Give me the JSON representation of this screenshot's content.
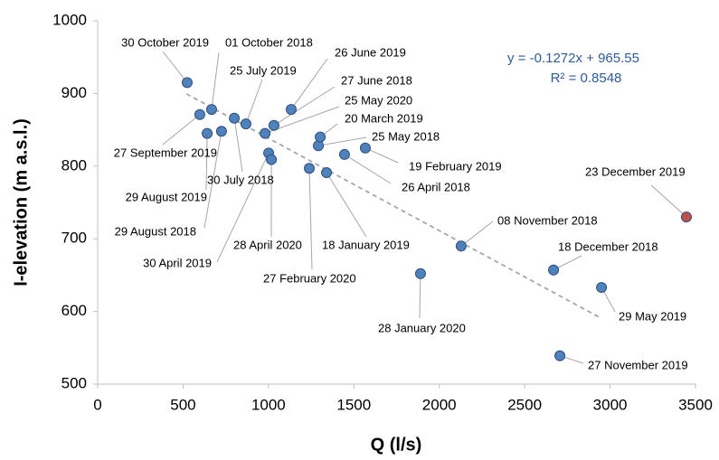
{
  "chart_data": {
    "type": "scatter",
    "x_label": "Q (l/s)",
    "y_label": "I-elevation (m a.s.l.)",
    "xlim": [
      0,
      3500
    ],
    "xticks": [
      0,
      500,
      1000,
      1500,
      2000,
      2500,
      3000,
      3500
    ],
    "ylim": [
      500,
      1000
    ],
    "yticks": [
      500,
      600,
      700,
      800,
      900,
      1000
    ],
    "grid": false,
    "labels": [
      "30 October 2019",
      "01 October 2018",
      "27 September 2019",
      "29 August 2019",
      "29 August 2018",
      "30 July 2018",
      "25 July 2019",
      "25 May 2020",
      "30 April 2019",
      "28 April 2020",
      "27 June 2018",
      "26 June 2019",
      "27 February 2020",
      "25 May 2018",
      "20 March 2019",
      "18 January 2019",
      "26 April 2018",
      "19 February 2019",
      "28 January 2020",
      "08 November 2018",
      "18 December 2018",
      "27 November 2019",
      "29 May 2019",
      "23 December 2019"
    ],
    "x": [
      524,
      667,
      598,
      641,
      725,
      800,
      868,
      980,
      1001,
      1017,
      1032,
      1133,
      1239,
      1292,
      1303,
      1340,
      1445,
      1567,
      1890,
      2128,
      2669,
      2706,
      2950,
      3447
    ],
    "y": [
      915,
      878,
      871,
      845,
      848,
      866,
      858,
      845,
      818,
      809,
      856,
      878,
      797,
      828,
      840,
      791,
      816,
      825,
      652,
      690,
      657,
      539,
      633,
      730
    ],
    "colors": [
      "#4f81bd",
      "#4f81bd",
      "#4f81bd",
      "#4f81bd",
      "#4f81bd",
      "#4f81bd",
      "#4f81bd",
      "#4f81bd",
      "#4f81bd",
      "#4f81bd",
      "#4f81bd",
      "#4f81bd",
      "#4f81bd",
      "#4f81bd",
      "#4f81bd",
      "#4f81bd",
      "#4f81bd",
      "#4f81bd",
      "#4f81bd",
      "#4f81bd",
      "#4f81bd",
      "#4f81bd",
      "#4f81bd",
      "#c0504d"
    ],
    "trendline": {
      "slope": -0.1272,
      "intercept": 965.55,
      "x": [
        520,
        2950
      ],
      "equation": "y = -0.1272x + 965.55",
      "r2_label": "R² = 0.8548"
    }
  }
}
